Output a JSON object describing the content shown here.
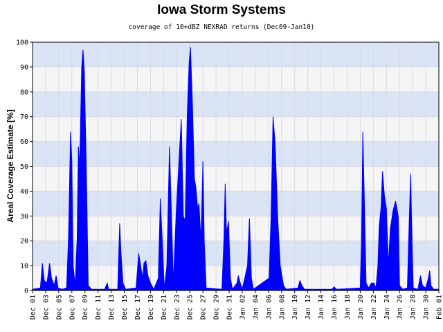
{
  "chart_data": {
    "type": "area",
    "title": "Iowa Storm Systems",
    "subtitle": "coverage of 10+dBZ NEXRAD returns (Dec09-Jan10)",
    "y_label": "Areal Coverage Estimate [%]",
    "color": "#0000ff",
    "band_colors": [
      "#f5f5f5",
      "#dbe4f5"
    ],
    "grid": true,
    "xlim": [
      0,
      62
    ],
    "ylim": [
      0,
      100
    ],
    "yticks": [
      0,
      10,
      20,
      30,
      40,
      50,
      60,
      70,
      80,
      90,
      100
    ],
    "xticks": [
      {
        "value": 0,
        "label": "Dec 01"
      },
      {
        "value": 2,
        "label": "Dec 03"
      },
      {
        "value": 4,
        "label": "Dec 05"
      },
      {
        "value": 6,
        "label": "Dec 07"
      },
      {
        "value": 8,
        "label": "Dec 09"
      },
      {
        "value": 10,
        "label": "Dec 11"
      },
      {
        "value": 12,
        "label": "Dec 13"
      },
      {
        "value": 14,
        "label": "Dec 15"
      },
      {
        "value": 16,
        "label": "Dec 17"
      },
      {
        "value": 18,
        "label": "Dec 19"
      },
      {
        "value": 20,
        "label": "Dec 21"
      },
      {
        "value": 22,
        "label": "Dec 23"
      },
      {
        "value": 24,
        "label": "Dec 25"
      },
      {
        "value": 26,
        "label": "Dec 27"
      },
      {
        "value": 28,
        "label": "Dec 29"
      },
      {
        "value": 30,
        "label": "Dec 31"
      },
      {
        "value": 32,
        "label": "Jan 02"
      },
      {
        "value": 34,
        "label": "Jan 04"
      },
      {
        "value": 36,
        "label": "Jan 06"
      },
      {
        "value": 38,
        "label": "Jan 08"
      },
      {
        "value": 40,
        "label": "Jan 10"
      },
      {
        "value": 42,
        "label": "Jan 12"
      },
      {
        "value": 44,
        "label": "Jan 14"
      },
      {
        "value": 46,
        "label": "Jan 16"
      },
      {
        "value": 48,
        "label": "Jan 18"
      },
      {
        "value": 50,
        "label": "Jan 20"
      },
      {
        "value": 52,
        "label": "Jan 22"
      },
      {
        "value": 54,
        "label": "Jan 24"
      },
      {
        "value": 56,
        "label": "Jan 26"
      },
      {
        "value": 58,
        "label": "Jan 28"
      },
      {
        "value": 60,
        "label": "Jan 30"
      },
      {
        "value": 62,
        "label": "Feb 01"
      }
    ],
    "x": [
      0,
      1.2,
      1.5,
      1.8,
      2.2,
      2.6,
      2.9,
      3.3,
      3.6,
      3.9,
      4.5,
      5.2,
      5.5,
      5.8,
      6.0,
      6.2,
      6.5,
      6.8,
      7.0,
      7.2,
      7.5,
      7.7,
      7.9,
      8.2,
      8.5,
      9,
      11,
      11.4,
      11.6,
      13,
      13.3,
      13.5,
      13.8,
      14.2,
      15.8,
      16.2,
      16.5,
      16.8,
      17.0,
      17.3,
      17.6,
      18,
      18.5,
      19.2,
      19.5,
      19.8,
      20.1,
      20.5,
      20.9,
      21.2,
      21.5,
      21.9,
      22.3,
      22.7,
      23.0,
      23.3,
      23.6,
      23.9,
      24.1,
      24.4,
      24.7,
      24.9,
      25.2,
      25.4,
      25.7,
      26.0,
      26.2,
      26.5,
      28.9,
      29.2,
      29.4,
      29.6,
      29.9,
      30.2,
      30.5,
      31.2,
      31.4,
      31.7,
      32.0,
      32.8,
      33.1,
      33.4,
      33.7,
      36.1,
      36.4,
      36.7,
      37.0,
      37.1,
      37.4,
      37.8,
      38.3,
      38.7,
      40.5,
      40.8,
      41.1,
      41.5,
      45.7,
      46,
      46.4,
      50.0,
      50.2,
      50.4,
      50.6,
      50.9,
      51.3,
      51.7,
      52.1,
      52.4,
      52.7,
      52.9,
      53.2,
      53.4,
      53.7,
      54.0,
      54.3,
      54.6,
      55.0,
      55.4,
      55.8,
      56.0,
      56.5,
      57.2,
      57.5,
      57.7,
      57.9,
      58.1,
      58.8,
      59.2,
      59.5,
      60.0,
      60.4,
      60.6,
      60.8,
      61.2,
      62
    ],
    "values": [
      0.5,
      1,
      11,
      4,
      3,
      11,
      5,
      2,
      6,
      1,
      0.5,
      1,
      22,
      64,
      52,
      10,
      2,
      20,
      58,
      50,
      90,
      97,
      88,
      50,
      2,
      0.5,
      0.5,
      3,
      0.5,
      0.5,
      27,
      15,
      3,
      0.5,
      1,
      15,
      10,
      5,
      11,
      12,
      6,
      3,
      0.5,
      5,
      37,
      20,
      1,
      10,
      58,
      30,
      3,
      30,
      50,
      69,
      30,
      28,
      70,
      92,
      98,
      75,
      45,
      42,
      33,
      35,
      20,
      52,
      20,
      1,
      0.5,
      20,
      43,
      23,
      28,
      5,
      0.5,
      3,
      6,
      3,
      0.5,
      10,
      29,
      5,
      0.5,
      5,
      30,
      70,
      60,
      53,
      30,
      10,
      2,
      0.5,
      1,
      4,
      2,
      0.5,
      0.5,
      1.5,
      0.5,
      1,
      20,
      64,
      40,
      3,
      1,
      3,
      3,
      1,
      10,
      26,
      34,
      48,
      38,
      33,
      10,
      25,
      32,
      36,
      30,
      2,
      0.5,
      1,
      30,
      47,
      20,
      1,
      0.5,
      6,
      2,
      1,
      5,
      8,
      2,
      0.5,
      0.5
    ]
  }
}
